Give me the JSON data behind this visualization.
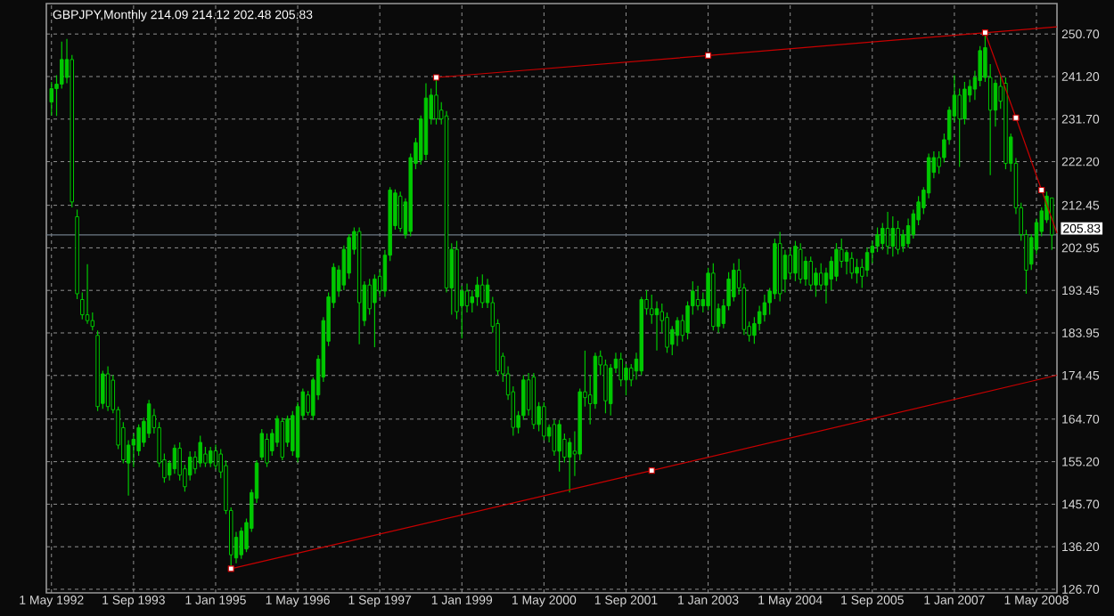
{
  "chart_data": {
    "type": "candlestick",
    "title": "GBPJPY,Monthly  214.09 214.12 202.48 205.83",
    "color": "#00c800",
    "x": [
      "1992-05",
      "1992-06",
      "1992-07",
      "1992-08",
      "1992-09",
      "1992-10",
      "1992-11",
      "1992-12",
      "1993-01",
      "1993-02",
      "1993-03",
      "1993-04",
      "1993-05",
      "1993-06",
      "1993-07",
      "1993-08",
      "1993-09",
      "1993-10",
      "1993-11",
      "1993-12",
      "1994-01",
      "1994-02",
      "1994-03",
      "1994-04",
      "1994-05",
      "1994-06",
      "1994-07",
      "1994-08",
      "1994-09",
      "1994-10",
      "1994-11",
      "1994-12",
      "1995-01",
      "1995-02",
      "1995-03",
      "1995-04",
      "1995-05",
      "1995-06",
      "1995-07",
      "1995-08",
      "1995-09",
      "1995-10",
      "1995-11",
      "1995-12",
      "1996-01",
      "1996-02",
      "1996-03",
      "1996-04",
      "1996-05",
      "1996-06",
      "1996-07",
      "1996-08",
      "1996-09",
      "1996-10",
      "1996-11",
      "1996-12",
      "1997-01",
      "1997-02",
      "1997-03",
      "1997-04",
      "1997-05",
      "1997-06",
      "1997-07",
      "1997-08",
      "1997-09",
      "1997-10",
      "1997-11",
      "1997-12",
      "1998-01",
      "1998-02",
      "1998-03",
      "1998-04",
      "1998-05",
      "1998-06",
      "1998-07",
      "1998-08",
      "1998-09",
      "1998-10",
      "1998-11",
      "1998-12",
      "1999-01",
      "1999-02",
      "1999-03",
      "1999-04",
      "1999-05",
      "1999-06",
      "1999-07",
      "1999-08",
      "1999-09",
      "1999-10",
      "1999-11",
      "1999-12",
      "2000-01",
      "2000-02",
      "2000-03",
      "2000-04",
      "2000-05",
      "2000-06",
      "2000-07",
      "2000-08",
      "2000-09",
      "2000-10",
      "2000-11",
      "2000-12",
      "2001-01",
      "2001-02",
      "2001-03",
      "2001-04",
      "2001-05",
      "2001-06",
      "2001-07",
      "2001-08",
      "2001-09",
      "2001-10",
      "2001-11",
      "2001-12",
      "2002-01",
      "2002-02",
      "2002-03",
      "2002-04",
      "2002-05",
      "2002-06",
      "2002-07",
      "2002-08",
      "2002-09",
      "2002-10",
      "2002-11",
      "2002-12",
      "2003-01",
      "2003-02",
      "2003-03",
      "2003-04",
      "2003-05",
      "2003-06",
      "2003-07",
      "2003-08",
      "2003-09",
      "2003-10",
      "2003-11",
      "2003-12",
      "2004-01",
      "2004-02",
      "2004-03",
      "2004-04",
      "2004-05",
      "2004-06",
      "2004-07",
      "2004-08",
      "2004-09",
      "2004-10",
      "2004-11",
      "2004-12",
      "2005-01",
      "2005-02",
      "2005-03",
      "2005-04",
      "2005-05",
      "2005-06",
      "2005-07",
      "2005-08",
      "2005-09",
      "2005-10",
      "2005-11",
      "2005-12",
      "2006-01",
      "2006-02",
      "2006-03",
      "2006-04",
      "2006-05",
      "2006-06",
      "2006-07",
      "2006-08",
      "2006-09",
      "2006-10",
      "2006-11",
      "2006-12",
      "2007-01",
      "2007-02",
      "2007-03",
      "2007-04",
      "2007-05",
      "2007-06",
      "2007-07",
      "2007-08",
      "2007-09",
      "2007-10",
      "2007-11",
      "2007-12",
      "2008-01",
      "2008-02",
      "2008-03",
      "2008-04",
      "2008-05",
      "2008-06",
      "2008-07",
      "2008-08"
    ],
    "ohlc": [
      [
        235.5,
        240,
        232.5,
        238.5
      ],
      [
        238.5,
        241.5,
        232.4,
        239.5
      ],
      [
        239.5,
        249,
        238.5,
        245
      ],
      [
        241,
        249.6,
        239.7,
        245
      ],
      [
        245,
        246,
        212,
        213.2
      ],
      [
        209.9,
        211.5,
        191.5,
        192.7
      ],
      [
        191.4,
        193,
        187,
        188
      ],
      [
        188,
        199.3,
        186,
        186.7
      ],
      [
        186.7,
        188.5,
        184.5,
        185.4
      ],
      [
        183.4,
        184.5,
        166.5,
        167.5
      ],
      [
        168.2,
        175.5,
        167,
        174.8
      ],
      [
        174.8,
        176.5,
        166.5,
        167.5
      ],
      [
        173.4,
        174.5,
        166,
        166.8
      ],
      [
        166.8,
        167.5,
        158,
        158.9
      ],
      [
        162.8,
        164,
        154.8,
        155.6
      ],
      [
        154.9,
        160,
        147.6,
        158.9
      ],
      [
        158.9,
        161.5,
        154,
        160.2
      ],
      [
        157.6,
        163.5,
        156.5,
        162.8
      ],
      [
        159.5,
        165,
        158.5,
        164.2
      ],
      [
        161.5,
        169,
        160.5,
        168.1
      ],
      [
        165.5,
        167,
        161.5,
        162.8
      ],
      [
        162.8,
        164,
        154,
        154.9
      ],
      [
        155.6,
        157,
        150.5,
        151.6
      ],
      [
        152.2,
        155.5,
        151,
        154.9
      ],
      [
        153.6,
        159,
        152.5,
        158.2
      ],
      [
        158.2,
        159.5,
        151,
        152.2
      ],
      [
        153.6,
        154.5,
        148.5,
        149.6
      ],
      [
        152.2,
        157.5,
        151,
        156.2
      ],
      [
        156.2,
        157.5,
        152.5,
        153.6
      ],
      [
        154.9,
        161,
        154,
        159.5
      ],
      [
        156.9,
        158.5,
        154,
        154.9
      ],
      [
        154.9,
        158.5,
        154,
        157.6
      ],
      [
        157.6,
        159,
        153.5,
        154.3
      ],
      [
        156.9,
        158,
        151.5,
        152.9
      ],
      [
        154.3,
        155.5,
        143.5,
        144.3
      ],
      [
        144.3,
        145,
        131.3,
        134.4
      ],
      [
        133.7,
        139.5,
        132.5,
        138.3
      ],
      [
        134.4,
        140.5,
        133.5,
        139.7
      ],
      [
        135.7,
        142.5,
        135,
        141.6
      ],
      [
        140.3,
        149,
        139.5,
        148.3
      ],
      [
        147,
        155.5,
        146,
        154.9
      ],
      [
        156.2,
        162.5,
        155.5,
        161.5
      ],
      [
        160.2,
        161.5,
        154,
        154.9
      ],
      [
        157.6,
        162.5,
        156.5,
        161.5
      ],
      [
        159.5,
        165.5,
        158.5,
        164.8
      ],
      [
        164.2,
        165,
        155.5,
        156.2
      ],
      [
        159.5,
        165.5,
        158.5,
        164.8
      ],
      [
        157.6,
        166.5,
        156.5,
        165.5
      ],
      [
        156.2,
        168.5,
        155,
        167.5
      ],
      [
        165.5,
        171.5,
        164.5,
        170.8
      ],
      [
        170.1,
        171,
        165.5,
        166.2
      ],
      [
        165.5,
        174,
        164.5,
        173.45
      ],
      [
        170.1,
        179,
        169,
        178.1
      ],
      [
        174.1,
        187.5,
        173,
        186.7
      ],
      [
        182.1,
        193,
        181,
        192
      ],
      [
        190.7,
        199.5,
        189.5,
        198.6
      ],
      [
        193.3,
        199,
        192,
        198
      ],
      [
        194.65,
        203.5,
        193.5,
        202.6
      ],
      [
        197.3,
        206,
        196,
        205.25
      ],
      [
        202.6,
        207.5,
        201.5,
        206.6
      ],
      [
        206.6,
        207.5,
        181.4,
        190.7
      ],
      [
        186.7,
        195.5,
        185.5,
        194.65
      ],
      [
        194.65,
        196,
        188,
        189.35
      ],
      [
        190.7,
        197,
        180.75,
        196
      ],
      [
        196.6,
        198,
        192,
        193.3
      ],
      [
        193.3,
        202.5,
        192,
        201.3
      ],
      [
        201.3,
        216.5,
        200,
        215.85
      ],
      [
        207.9,
        216,
        207,
        215.2
      ],
      [
        214.5,
        215.5,
        206.5,
        207.3
      ],
      [
        205.9,
        214,
        205,
        213.2
      ],
      [
        206.6,
        224,
        205.5,
        223.1
      ],
      [
        221.8,
        227.5,
        220.5,
        226.45
      ],
      [
        222.5,
        232.5,
        221.5,
        231.75
      ],
      [
        223.8,
        239.7,
        222.5,
        236.4
      ],
      [
        231.75,
        238.5,
        230.5,
        237.05
      ],
      [
        237.05,
        241,
        230.5,
        231.75
      ],
      [
        233.7,
        235.5,
        230.5,
        231.75
      ],
      [
        232.4,
        233.5,
        193,
        194
      ],
      [
        194,
        204,
        188,
        202.6
      ],
      [
        202.6,
        204.5,
        187,
        188.7
      ],
      [
        190,
        194.5,
        182.7,
        193.3
      ],
      [
        193.3,
        195,
        188.5,
        190
      ],
      [
        190.7,
        193.5,
        188.5,
        192
      ],
      [
        192,
        196.5,
        190,
        194.65
      ],
      [
        194.65,
        197,
        189.5,
        190.7
      ],
      [
        190.7,
        196,
        189.5,
        194.65
      ],
      [
        190.7,
        192,
        184,
        185.4
      ],
      [
        186.05,
        187,
        174.5,
        175.45
      ],
      [
        178.75,
        179.5,
        173,
        174.8
      ],
      [
        174.8,
        176.5,
        169,
        170.1
      ],
      [
        170.8,
        172,
        161,
        162.85
      ],
      [
        162.85,
        166.5,
        161.5,
        165.5
      ],
      [
        165.5,
        174.5,
        164.5,
        173.45
      ],
      [
        173.45,
        175,
        165.5,
        166.8
      ],
      [
        174.1,
        175,
        162.5,
        163.5
      ],
      [
        163.5,
        168.5,
        162,
        167.5
      ],
      [
        167.5,
        168.5,
        160,
        160.9
      ],
      [
        160.9,
        163.5,
        159.5,
        162.85
      ],
      [
        163.5,
        164.5,
        156.5,
        157.55
      ],
      [
        157.55,
        164.5,
        153,
        163.5
      ],
      [
        160.2,
        161.5,
        155,
        156.2
      ],
      [
        156.2,
        160.5,
        148.3,
        159.5
      ],
      [
        157.55,
        162,
        152,
        156.9
      ],
      [
        156.9,
        171.5,
        155.5,
        170.8
      ],
      [
        170.8,
        180,
        167.5,
        169.5
      ],
      [
        170.1,
        174.5,
        163.5,
        168.15
      ],
      [
        168.15,
        179.5,
        167,
        178.75
      ],
      [
        178.75,
        180,
        174.5,
        176.8
      ],
      [
        176.8,
        178,
        166,
        168.8
      ],
      [
        168.15,
        177,
        165.5,
        176.1
      ],
      [
        176.1,
        179.5,
        175,
        178.1
      ],
      [
        178.1,
        179.5,
        172,
        173.45
      ],
      [
        173.45,
        177,
        170,
        176.1
      ],
      [
        176.1,
        177,
        172,
        173.45
      ],
      [
        175.45,
        179.5,
        173.5,
        178.1
      ],
      [
        175.45,
        192,
        174.5,
        191.4
      ],
      [
        191.4,
        193.5,
        188,
        189.35
      ],
      [
        189.35,
        192.5,
        186,
        188
      ],
      [
        188,
        191,
        180,
        189.35
      ],
      [
        188.7,
        190.5,
        184,
        186.7
      ],
      [
        187.4,
        188.5,
        179.5,
        180.75
      ],
      [
        181.4,
        185.5,
        179,
        184.7
      ],
      [
        183.4,
        187.5,
        181,
        186.7
      ],
      [
        186.7,
        188,
        182,
        183.4
      ],
      [
        184.05,
        191,
        182.5,
        190
      ],
      [
        190,
        195.5,
        188,
        193.3
      ],
      [
        191.4,
        194.5,
        189,
        190
      ],
      [
        190,
        193,
        188.5,
        191.4
      ],
      [
        190,
        198.5,
        189,
        197.3
      ],
      [
        197.3,
        199.5,
        184.5,
        185.4
      ],
      [
        185.4,
        190.5,
        184,
        189.35
      ],
      [
        186.05,
        191.5,
        185,
        190
      ],
      [
        190,
        197.5,
        189,
        195.975
      ],
      [
        192,
        199.5,
        191,
        197.96
      ],
      [
        197.96,
        200.5,
        192.5,
        194
      ],
      [
        194,
        195,
        183.5,
        184.7
      ],
      [
        185.4,
        186.5,
        182,
        183.4
      ],
      [
        183.4,
        187.5,
        181.5,
        186.05
      ],
      [
        186.05,
        190,
        184.5,
        188.7
      ],
      [
        188,
        192.5,
        186.5,
        190.7
      ],
      [
        190.7,
        194,
        188,
        193.3
      ],
      [
        192.7,
        205,
        191.5,
        203.9
      ],
      [
        203.9,
        206.5,
        191,
        192.7
      ],
      [
        195.975,
        202.5,
        193,
        201.3
      ],
      [
        201.3,
        203,
        196,
        197.3
      ],
      [
        197.3,
        204.5,
        195.5,
        203.3
      ],
      [
        202.6,
        204,
        195,
        195.975
      ],
      [
        195.975,
        201,
        194.5,
        199.95
      ],
      [
        199.95,
        201,
        193.5,
        194.65
      ],
      [
        194.65,
        198.5,
        192,
        197.3
      ],
      [
        197.3,
        199.5,
        193.5,
        194.65
      ],
      [
        194.65,
        198.5,
        190.5,
        197.3
      ],
      [
        195.975,
        201,
        193.5,
        199.95
      ],
      [
        196.6,
        204,
        195.5,
        202.6
      ],
      [
        202.6,
        205,
        198.5,
        199.95
      ],
      [
        199.95,
        202.5,
        197,
        201.9
      ],
      [
        200.6,
        202,
        196,
        197.3
      ],
      [
        197.3,
        200.5,
        195,
        198.6
      ],
      [
        198.6,
        200.5,
        194,
        196.6
      ],
      [
        197.96,
        203,
        196.5,
        201.9
      ],
      [
        201.9,
        204.5,
        199.5,
        203.3
      ],
      [
        203.3,
        207.5,
        202,
        205.9
      ],
      [
        203.9,
        208.5,
        202.5,
        207.3
      ],
      [
        207.3,
        211,
        201.5,
        203.3
      ],
      [
        203.3,
        210,
        201,
        207.3
      ],
      [
        207.3,
        209,
        201.5,
        202.6
      ],
      [
        203.3,
        207,
        202,
        205.9
      ],
      [
        203.9,
        209.5,
        203,
        207.9
      ],
      [
        205.9,
        211.5,
        205,
        210.55
      ],
      [
        209.2,
        214.5,
        208,
        213.2
      ],
      [
        211.9,
        216.5,
        210.5,
        215.85
      ],
      [
        215.2,
        224,
        214,
        223.1
      ],
      [
        219.8,
        224.5,
        218.5,
        223.1
      ],
      [
        223.1,
        224.5,
        219.5,
        221.1
      ],
      [
        223.1,
        228.5,
        222,
        227.1
      ],
      [
        227.1,
        234.5,
        226,
        233.7
      ],
      [
        232.4,
        241.5,
        231,
        237.05
      ],
      [
        237.05,
        238.5,
        221,
        231.75
      ],
      [
        231.75,
        240,
        230.5,
        238.4
      ],
      [
        237.05,
        240.5,
        235.5,
        239
      ],
      [
        238.4,
        242.5,
        236,
        241
      ],
      [
        240.3,
        248,
        239,
        246.99
      ],
      [
        241,
        251,
        240,
        247.65
      ],
      [
        241,
        244,
        219.2,
        233.7
      ],
      [
        233.7,
        240.5,
        230,
        239.7
      ],
      [
        239,
        241.5,
        234,
        235.7
      ],
      [
        239.7,
        241,
        220.5,
        221.8
      ],
      [
        221.8,
        228.5,
        220,
        227.7
      ],
      [
        221.8,
        223,
        210.5,
        211.9
      ],
      [
        211.9,
        213,
        204.5,
        205.9
      ],
      [
        205.9,
        207,
        192.7,
        197.96
      ],
      [
        199.3,
        206,
        198,
        205.25
      ],
      [
        202.6,
        209.5,
        201.5,
        208.6
      ],
      [
        206.6,
        212,
        205.5,
        211.2
      ],
      [
        209.2,
        215.5,
        208.5,
        214.5
      ],
      [
        214.09,
        214.12,
        202.48,
        205.83
      ]
    ],
    "series": [
      {
        "type": "line",
        "color": "#c80000",
        "marker": "square",
        "x": [
          "1998-08",
          "2003-01",
          "2008-09"
        ],
        "values": [
          241.0,
          245.9,
          252.3
        ]
      },
      {
        "type": "line",
        "color": "#c80000",
        "marker": "square",
        "x": [
          "1995-04",
          "2002-02",
          "2008-09"
        ],
        "values": [
          131.3,
          153.2,
          174.5
        ]
      },
      {
        "type": "line",
        "color": "#c80000",
        "marker": "square",
        "x": [
          "2007-07",
          "2008-01",
          "2008-06",
          "2008-09"
        ],
        "values": [
          251.0,
          232.0,
          215.85,
          206.2
        ]
      }
    ],
    "ref_lines": [
      {
        "axis": "y",
        "value": 205.83,
        "label": "205.83",
        "color": "#6e7b87"
      }
    ],
    "xlim": [
      "1992-04",
      "2008-09"
    ],
    "ylim": [
      125.9,
      257.5
    ],
    "xticks": [
      {
        "value": "1992-05",
        "label": "1 May 1992"
      },
      {
        "value": "1993-09",
        "label": "1 Sep 1993"
      },
      {
        "value": "1995-01",
        "label": "1 Jan 1995"
      },
      {
        "value": "1996-05",
        "label": "1 May 1996"
      },
      {
        "value": "1997-09",
        "label": "1 Sep 1997"
      },
      {
        "value": "1999-01",
        "label": "1 Jan 1999"
      },
      {
        "value": "2000-05",
        "label": "1 May 2000"
      },
      {
        "value": "2001-09",
        "label": "1 Sep 2001"
      },
      {
        "value": "2003-01",
        "label": "1 Jan 2003"
      },
      {
        "value": "2004-05",
        "label": "1 May 2004"
      },
      {
        "value": "2005-09",
        "label": "1 Sep 2005"
      },
      {
        "value": "2007-01",
        "label": "1 Jan 2007"
      },
      {
        "value": "2008-05",
        "label": "1 May 2008"
      }
    ],
    "yticks": [
      {
        "value": 126.7,
        "label": "126.70"
      },
      {
        "value": 136.2,
        "label": "136.20"
      },
      {
        "value": 145.7,
        "label": "145.70"
      },
      {
        "value": 155.2,
        "label": "155.20"
      },
      {
        "value": 164.7,
        "label": "164.70"
      },
      174.45,
      183.95,
      193.45,
      202.95,
      212.45,
      {
        "value": 222.2,
        "label": "222.20"
      },
      {
        "value": 231.7,
        "label": "231.70"
      },
      {
        "value": 241.2,
        "label": "241.20"
      },
      {
        "value": 250.7,
        "label": "250.70"
      }
    ],
    "grid": true
  }
}
